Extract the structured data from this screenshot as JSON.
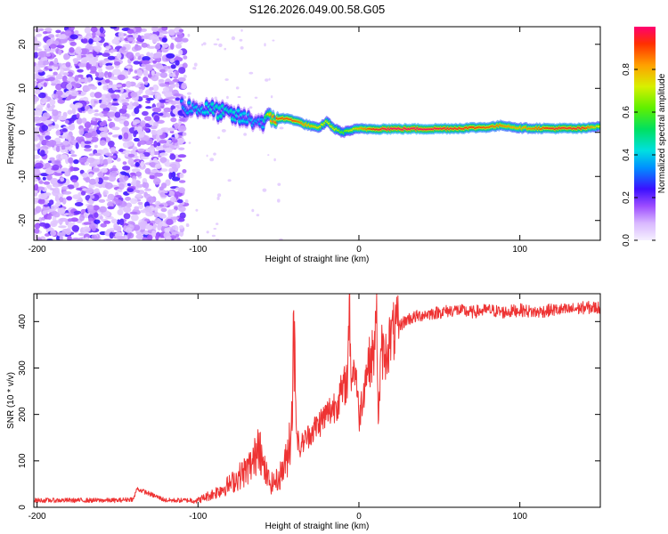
{
  "title": "S126.2026.049.00.58.G05",
  "chart_data": [
    {
      "type": "heatmap",
      "xlabel": "Height of straight line (km)",
      "ylabel": "Frequency (Hz)",
      "xlim": [
        -202,
        150
      ],
      "ylim": [
        -24.5,
        24
      ],
      "xticks": [
        -200,
        -100,
        0,
        100
      ],
      "yticks": [
        -20,
        -10,
        0,
        10,
        20
      ],
      "colorbar": {
        "label": "Normalized spectral amplitude",
        "range": [
          0.0,
          1.0
        ],
        "ticks": [
          0.0,
          0.2,
          0.4,
          0.6,
          0.8
        ],
        "tick_labels": [
          "0.0",
          "0.2",
          "0.4",
          "0.6",
          "0.8"
        ]
      },
      "ridge": {
        "x": [
          -110,
          -100,
          -90,
          -80,
          -70,
          -60,
          -55,
          -50,
          -45,
          -40,
          -35,
          -30,
          -25,
          -20,
          -15,
          -10,
          -5,
          0,
          10,
          20,
          40,
          60,
          80,
          90,
          100,
          120,
          140,
          150
        ],
        "freq": [
          6,
          5.5,
          5,
          4,
          3,
          2.5,
          3,
          3.2,
          3.1,
          2.8,
          2.0,
          1.5,
          0.9,
          2.5,
          0.8,
          0.0,
          0.5,
          0.8,
          0.8,
          0.8,
          0.8,
          0.9,
          1.2,
          1.6,
          1.0,
          0.9,
          0.9,
          1.5
        ],
        "amplitude": [
          0.35,
          0.4,
          0.45,
          0.45,
          0.4,
          0.35,
          0.8,
          0.9,
          0.9,
          0.9,
          0.85,
          0.8,
          0.75,
          0.7,
          0.75,
          0.6,
          0.7,
          0.8,
          0.95,
          1.0,
          1.0,
          0.95,
          0.9,
          0.85,
          0.8,
          0.95,
          0.95,
          0.7
        ]
      }
    },
    {
      "type": "line",
      "xlabel": "Height of straight line (km)",
      "ylabel": "SNR (10 * v/v)",
      "xlim": [
        -202,
        150
      ],
      "ylim": [
        0,
        460
      ],
      "xticks": [
        -200,
        -100,
        0,
        100
      ],
      "yticks": [
        0,
        100,
        200,
        300,
        400
      ],
      "series": [
        {
          "name": "SNR",
          "color": "#ee3333",
          "x": [
            -202,
            -150,
            -140,
            -138,
            -120,
            -100,
            -90,
            -80,
            -70,
            -65,
            -62,
            -60,
            -55,
            -50,
            -45,
            -42,
            -40,
            -39,
            -37,
            -35,
            -30,
            -25,
            -20,
            -15,
            -10,
            -7,
            -6,
            -5,
            -2,
            0,
            5,
            10,
            11,
            12,
            14,
            16,
            20,
            25,
            30,
            40,
            50,
            60,
            70,
            80,
            90,
            100,
            110,
            120,
            130,
            140,
            150
          ],
          "y": [
            15,
            15,
            18,
            40,
            15,
            15,
            30,
            50,
            80,
            100,
            160,
            90,
            50,
            60,
            100,
            180,
            400,
            180,
            120,
            140,
            160,
            180,
            200,
            220,
            250,
            280,
            450,
            290,
            300,
            190,
            300,
            340,
            460,
            180,
            340,
            320,
            370,
            390,
            405,
            415,
            420,
            425,
            420,
            425,
            420,
            425,
            420,
            425,
            425,
            430,
            430
          ]
        }
      ]
    }
  ]
}
